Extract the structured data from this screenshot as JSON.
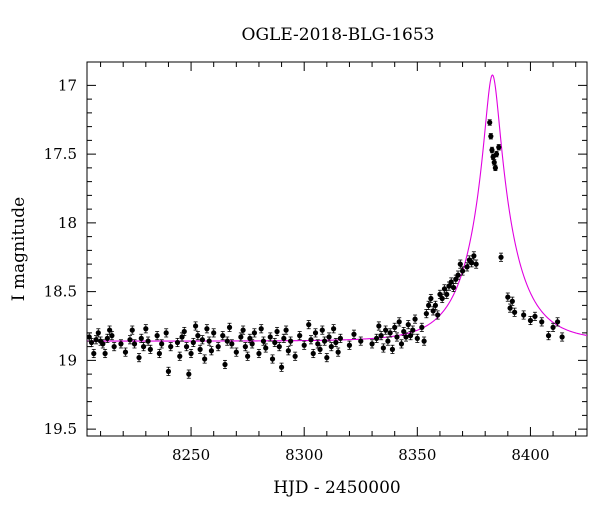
{
  "chart_data": {
    "type": "scatter",
    "title": "OGLE-2018-BLG-1653",
    "xlabel": "HJD - 2450000",
    "ylabel": "I magnitude",
    "xlim": [
      8204,
      8425
    ],
    "ylim": [
      19.55,
      16.83
    ],
    "y_inverted": true,
    "grid": false,
    "x_ticks": [
      8250,
      8300,
      8350,
      8400
    ],
    "y_ticks": [
      17,
      17.5,
      18,
      18.5,
      19,
      19.5
    ],
    "x_tick_labels": [
      "8250",
      "8300",
      "8350",
      "8400"
    ],
    "y_tick_labels": [
      "17",
      "17.5",
      "18",
      "18.5",
      "19",
      "19.5"
    ],
    "colors": {
      "points": "#000000",
      "model": "#e000e0"
    },
    "series": [
      {
        "kind": "points_with_errorbars",
        "points": [
          [
            8205,
            18.83,
            0.03
          ],
          [
            8206,
            18.87,
            0.03
          ],
          [
            8207,
            18.95,
            0.03
          ],
          [
            8208,
            18.85,
            0.03
          ],
          [
            8209,
            18.8,
            0.03
          ],
          [
            8210,
            18.86,
            0.03
          ],
          [
            8211,
            18.88,
            0.03
          ],
          [
            8212,
            18.95,
            0.03
          ],
          [
            8213,
            18.84,
            0.03
          ],
          [
            8214,
            18.78,
            0.03
          ],
          [
            8215,
            18.82,
            0.03
          ],
          [
            8216,
            18.9,
            0.03
          ],
          [
            8219,
            18.88,
            0.03
          ],
          [
            8221,
            18.94,
            0.03
          ],
          [
            8223,
            18.85,
            0.03
          ],
          [
            8224,
            18.78,
            0.03
          ],
          [
            8225,
            18.88,
            0.03
          ],
          [
            8227,
            18.98,
            0.03
          ],
          [
            8228,
            18.84,
            0.03
          ],
          [
            8229,
            18.9,
            0.03
          ],
          [
            8230,
            18.77,
            0.03
          ],
          [
            8231,
            18.86,
            0.03
          ],
          [
            8232,
            18.92,
            0.03
          ],
          [
            8235,
            18.82,
            0.03
          ],
          [
            8236,
            18.95,
            0.03
          ],
          [
            8237,
            18.88,
            0.03
          ],
          [
            8239,
            18.8,
            0.03
          ],
          [
            8240,
            19.08,
            0.03
          ],
          [
            8241,
            18.9,
            0.03
          ],
          [
            8244,
            18.87,
            0.03
          ],
          [
            8245,
            18.97,
            0.03
          ],
          [
            8246,
            18.83,
            0.03
          ],
          [
            8247,
            18.79,
            0.03
          ],
          [
            8248,
            18.9,
            0.03
          ],
          [
            8249,
            19.1,
            0.03
          ],
          [
            8250,
            18.95,
            0.03
          ],
          [
            8251,
            18.87,
            0.03
          ],
          [
            8252,
            18.75,
            0.03
          ],
          [
            8253,
            18.82,
            0.03
          ],
          [
            8254,
            18.92,
            0.03
          ],
          [
            8255,
            18.85,
            0.03
          ],
          [
            8256,
            18.99,
            0.03
          ],
          [
            8257,
            18.77,
            0.03
          ],
          [
            8258,
            18.86,
            0.03
          ],
          [
            8259,
            18.93,
            0.03
          ],
          [
            8260,
            18.8,
            0.03
          ],
          [
            8262,
            18.9,
            0.03
          ],
          [
            8264,
            18.82,
            0.03
          ],
          [
            8265,
            19.03,
            0.03
          ],
          [
            8266,
            18.86,
            0.03
          ],
          [
            8267,
            18.76,
            0.03
          ],
          [
            8268,
            18.88,
            0.03
          ],
          [
            8270,
            18.94,
            0.03
          ],
          [
            8272,
            18.83,
            0.03
          ],
          [
            8273,
            18.78,
            0.03
          ],
          [
            8274,
            18.9,
            0.03
          ],
          [
            8275,
            18.97,
            0.03
          ],
          [
            8276,
            18.84,
            0.03
          ],
          [
            8277,
            18.88,
            0.03
          ],
          [
            8278,
            18.8,
            0.03
          ],
          [
            8280,
            18.95,
            0.03
          ],
          [
            8281,
            18.77,
            0.03
          ],
          [
            8282,
            18.86,
            0.03
          ],
          [
            8283,
            18.91,
            0.03
          ],
          [
            8285,
            18.83,
            0.03
          ],
          [
            8286,
            18.99,
            0.03
          ],
          [
            8287,
            18.87,
            0.03
          ],
          [
            8288,
            18.79,
            0.03
          ],
          [
            8289,
            18.9,
            0.03
          ],
          [
            8290,
            19.05,
            0.03
          ],
          [
            8291,
            18.84,
            0.03
          ],
          [
            8292,
            18.78,
            0.03
          ],
          [
            8293,
            18.93,
            0.03
          ],
          [
            8294,
            18.86,
            0.03
          ],
          [
            8296,
            18.97,
            0.03
          ],
          [
            8298,
            18.82,
            0.03
          ],
          [
            8300,
            18.89,
            0.03
          ],
          [
            8302,
            18.74,
            0.03
          ],
          [
            8303,
            18.85,
            0.03
          ],
          [
            8304,
            18.95,
            0.03
          ],
          [
            8305,
            18.8,
            0.03
          ],
          [
            8306,
            18.88,
            0.03
          ],
          [
            8307,
            18.92,
            0.03
          ],
          [
            8308,
            18.78,
            0.03
          ],
          [
            8309,
            18.86,
            0.03
          ],
          [
            8310,
            18.98,
            0.03
          ],
          [
            8311,
            18.83,
            0.03
          ],
          [
            8312,
            18.9,
            0.03
          ],
          [
            8313,
            18.77,
            0.03
          ],
          [
            8314,
            18.87,
            0.03
          ],
          [
            8315,
            18.94,
            0.03
          ],
          [
            8316,
            18.84,
            0.03
          ],
          [
            8320,
            18.89,
            0.03
          ],
          [
            8322,
            18.81,
            0.03
          ],
          [
            8325,
            18.86,
            0.03
          ],
          [
            8330,
            18.88,
            0.03
          ],
          [
            8332,
            18.84,
            0.03
          ],
          [
            8333,
            18.75,
            0.03
          ],
          [
            8334,
            18.82,
            0.03
          ],
          [
            8335,
            18.91,
            0.03
          ],
          [
            8336,
            18.78,
            0.03
          ],
          [
            8337,
            18.86,
            0.03
          ],
          [
            8338,
            18.8,
            0.03
          ],
          [
            8339,
            18.92,
            0.03
          ],
          [
            8340,
            18.76,
            0.03
          ],
          [
            8341,
            18.83,
            0.03
          ],
          [
            8342,
            18.72,
            0.03
          ],
          [
            8343,
            18.88,
            0.03
          ],
          [
            8344,
            18.79,
            0.03
          ],
          [
            8345,
            18.83,
            0.03
          ],
          [
            8346,
            18.74,
            0.03
          ],
          [
            8347,
            18.82,
            0.03
          ],
          [
            8348,
            18.78,
            0.03
          ],
          [
            8349,
            18.7,
            0.03
          ],
          [
            8350,
            18.84,
            0.03
          ],
          [
            8352,
            18.76,
            0.03
          ],
          [
            8353,
            18.86,
            0.03
          ],
          [
            8354,
            18.66,
            0.03
          ],
          [
            8355,
            18.6,
            0.03
          ],
          [
            8356,
            18.55,
            0.03
          ],
          [
            8357,
            18.64,
            0.03
          ],
          [
            8358,
            18.6,
            0.03
          ],
          [
            8359,
            18.67,
            0.03
          ],
          [
            8360,
            18.52,
            0.03
          ],
          [
            8361,
            18.55,
            0.03
          ],
          [
            8362,
            18.48,
            0.03
          ],
          [
            8363,
            18.52,
            0.03
          ],
          [
            8364,
            18.46,
            0.03
          ],
          [
            8365,
            18.43,
            0.03
          ],
          [
            8366,
            18.47,
            0.03
          ],
          [
            8367,
            18.41,
            0.03
          ],
          [
            8368,
            18.38,
            0.03
          ],
          [
            8369,
            18.3,
            0.03
          ],
          [
            8370,
            18.35,
            0.03
          ],
          [
            8372,
            18.32,
            0.03
          ],
          [
            8373,
            18.27,
            0.03
          ],
          [
            8374,
            18.29,
            0.03
          ],
          [
            8375,
            18.24,
            0.03
          ],
          [
            8376,
            18.3,
            0.03
          ],
          [
            8382,
            17.27,
            0.02
          ],
          [
            8382.5,
            17.37,
            0.02
          ],
          [
            8383,
            17.47,
            0.02
          ],
          [
            8383.5,
            17.52,
            0.02
          ],
          [
            8384,
            17.56,
            0.02
          ],
          [
            8384.5,
            17.6,
            0.02
          ],
          [
            8385,
            17.5,
            0.02
          ],
          [
            8386,
            17.45,
            0.02
          ],
          [
            8387,
            18.25,
            0.03
          ],
          [
            8390,
            18.54,
            0.03
          ],
          [
            8391,
            18.62,
            0.03
          ],
          [
            8392,
            18.57,
            0.03
          ],
          [
            8393,
            18.65,
            0.03
          ],
          [
            8397,
            18.67,
            0.03
          ],
          [
            8400,
            18.71,
            0.03
          ],
          [
            8402,
            18.68,
            0.03
          ],
          [
            8405,
            18.72,
            0.03
          ],
          [
            8408,
            18.82,
            0.03
          ],
          [
            8410,
            18.76,
            0.03
          ],
          [
            8412,
            18.72,
            0.03
          ],
          [
            8414,
            18.83,
            0.03
          ]
        ]
      },
      {
        "kind": "model_curve",
        "baseline": 18.86,
        "t0": 8383.2,
        "u0": 0.17,
        "tE": 18
      }
    ]
  }
}
